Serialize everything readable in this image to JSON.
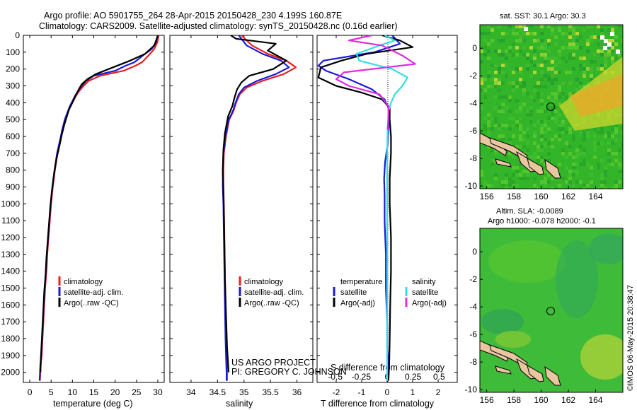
{
  "title_line1": "Argo profile: AO 5901755_264 28-Apr-2015 20150428_230 4.199S 160.87E",
  "title_line2": "Climatology: CARS2009. Satellite-adjusted climatology: synTS_20150428.nc (0.16d earlier)",
  "colors": {
    "climatology": "#e8201e",
    "satellite": "#1a1ad8",
    "argo": "#000000",
    "salinity_satellite": "#33dde6",
    "salinity_argo": "#e02be0",
    "land": "#e9c6a0"
  },
  "chart_data": [
    {
      "type": "line",
      "name": "temperature-profile",
      "xlabel": "temperature (deg C)",
      "ylabel": "",
      "xlim": [
        -1.5,
        31.5
      ],
      "ylim": [
        2060,
        0
      ],
      "xticks": [
        0,
        5,
        10,
        15,
        20,
        25,
        30
      ],
      "yticks": [
        0,
        100,
        200,
        300,
        400,
        500,
        600,
        700,
        800,
        900,
        1000,
        1100,
        1200,
        1300,
        1400,
        1500,
        1600,
        1700,
        1800,
        1900,
        2000
      ],
      "legend": [
        "climatology",
        "satellite-adj. clim.",
        "Argo(..raw -QC)"
      ],
      "series": [
        {
          "name": "climatology",
          "color": "#e8201e",
          "x": [
            30.2,
            29.9,
            29.2,
            27.8,
            26.3,
            24.8,
            22.0,
            16.5,
            13.8,
            12.6,
            11.6,
            10.8,
            10.2,
            9.5,
            8.9,
            8.3,
            7.7,
            7.2,
            6.5,
            5.9,
            5.4,
            5.0,
            4.7,
            4.4,
            4.1,
            3.9,
            3.6,
            3.4,
            3.2,
            3.0,
            2.8,
            2.6,
            2.5,
            2.4
          ],
          "y": [
            0,
            40,
            80,
            120,
            160,
            180,
            210,
            240,
            270,
            300,
            330,
            360,
            390,
            420,
            460,
            500,
            560,
            620,
            700,
            800,
            900,
            1000,
            1100,
            1200,
            1300,
            1400,
            1500,
            1600,
            1700,
            1800,
            1900,
            1950,
            2000,
            2050
          ]
        },
        {
          "name": "satellite",
          "color": "#1a1ad8",
          "x": [
            30.0,
            29.6,
            28.6,
            26.5,
            24.5,
            22.5,
            20.0,
            15.0,
            13.2,
            12.2,
            11.3,
            10.6,
            10.0,
            9.4,
            8.8,
            8.2,
            7.6,
            7.1,
            6.4,
            5.8,
            5.3,
            4.9,
            4.6,
            4.3,
            4.0,
            3.8,
            3.5,
            3.3,
            3.1,
            2.9,
            2.7,
            2.5,
            2.4,
            2.3
          ],
          "y": [
            0,
            40,
            80,
            120,
            160,
            180,
            210,
            240,
            270,
            300,
            330,
            360,
            390,
            420,
            460,
            500,
            560,
            620,
            700,
            800,
            900,
            1000,
            1100,
            1200,
            1300,
            1400,
            1500,
            1600,
            1700,
            1800,
            1900,
            1950,
            2000,
            2050
          ]
        },
        {
          "name": "argo",
          "color": "#000000",
          "x": [
            30.0,
            29.2,
            27.0,
            23.5,
            19.5,
            15.5,
            13.5,
            12.2,
            11.5,
            10.9,
            10.3,
            9.8,
            9.2,
            8.7,
            8.1,
            7.5,
            7.0,
            6.3,
            5.7,
            5.2,
            4.8,
            4.5,
            4.2,
            3.9,
            3.7,
            3.4,
            3.2,
            3.0,
            2.8,
            2.6,
            2.5
          ],
          "y": [
            0,
            60,
            110,
            150,
            190,
            230,
            260,
            290,
            320,
            350,
            380,
            410,
            440,
            480,
            530,
            590,
            650,
            730,
            820,
            920,
            1020,
            1120,
            1220,
            1320,
            1420,
            1520,
            1620,
            1720,
            1820,
            1920,
            2000
          ]
        }
      ]
    },
    {
      "type": "line",
      "name": "salinity-profile",
      "xlabel": "salinity",
      "xlim": [
        33.6,
        36.3
      ],
      "ylim": [
        2060,
        0
      ],
      "xticks": [
        34,
        34.5,
        35,
        35.5,
        36
      ],
      "legend": [
        "climatology",
        "satellite-adj. clim.",
        "Argo(..raw -QC)"
      ],
      "series": [
        {
          "name": "climatology",
          "color": "#e8201e",
          "x": [
            34.95,
            35.15,
            35.45,
            35.8,
            35.98,
            35.75,
            35.35,
            35.05,
            34.92,
            34.85,
            34.8,
            34.72,
            34.66,
            34.62,
            34.61,
            34.61,
            34.62,
            34.63,
            34.64,
            34.65,
            34.66,
            34.67,
            34.68,
            34.68
          ],
          "y": [
            0,
            60,
            110,
            150,
            190,
            230,
            270,
            310,
            350,
            400,
            450,
            500,
            600,
            700,
            800,
            900,
            1000,
            1200,
            1400,
            1600,
            1800,
            1900,
            2000,
            2050
          ]
        },
        {
          "name": "satellite",
          "color": "#1a1ad8",
          "x": [
            34.9,
            35.05,
            35.35,
            35.7,
            35.85,
            35.6,
            35.25,
            35.0,
            34.9,
            34.84,
            34.79,
            34.71,
            34.65,
            34.61,
            34.6,
            34.6,
            34.61,
            34.62,
            34.63,
            34.64,
            34.65,
            34.66,
            34.67,
            34.67
          ],
          "y": [
            0,
            60,
            110,
            150,
            190,
            230,
            270,
            310,
            350,
            400,
            450,
            500,
            600,
            700,
            800,
            900,
            1000,
            1200,
            1400,
            1600,
            1800,
            1900,
            2000,
            2050
          ]
        },
        {
          "name": "argo",
          "color": "#000000",
          "x": [
            34.75,
            34.85,
            35.6,
            35.45,
            35.8,
            35.55,
            35.1,
            34.95,
            34.87,
            34.82,
            34.78,
            34.7,
            34.64,
            34.61,
            34.6,
            34.61,
            34.62,
            34.63,
            34.64,
            34.66,
            34.68,
            34.7,
            34.71
          ],
          "y": [
            0,
            20,
            50,
            90,
            150,
            200,
            240,
            280,
            320,
            370,
            420,
            480,
            580,
            680,
            800,
            920,
            1050,
            1250,
            1450,
            1650,
            1850,
            1950,
            2000
          ]
        }
      ]
    },
    {
      "type": "line",
      "name": "difference-profile",
      "xlabel": "T difference from climatology",
      "xlabel_top": "S difference from climatology",
      "xlim": [
        -2.75,
        2.75
      ],
      "ylim": [
        2060,
        0
      ],
      "xticks": [
        -2,
        -1,
        0,
        1,
        2
      ],
      "xticks_salinity": [
        -0.5,
        -0.25,
        0,
        0.25,
        0.5
      ],
      "legend": [
        "temperature",
        "satellite",
        "Argo(-adj)",
        "salinity",
        "satellite",
        "Argo(-adj)"
      ],
      "series": [
        {
          "name": "temperature-satellite",
          "color": "#1a1ad8",
          "x": [
            0.2,
            0.5,
            -0.5,
            -2.5,
            -2.7,
            -2.4,
            -1.5,
            -0.6,
            -0.1,
            0.05,
            0.08,
            0.05,
            0.02,
            -0.08,
            -0.12,
            -0.1,
            -0.1,
            -0.05,
            -0.05,
            0.0,
            0.0,
            0.05,
            0.0
          ],
          "y": [
            0,
            50,
            100,
            150,
            180,
            210,
            260,
            320,
            380,
            430,
            480,
            550,
            650,
            750,
            850,
            950,
            1100,
            1300,
            1500,
            1700,
            1850,
            1950,
            2050
          ]
        },
        {
          "name": "temperature-argo",
          "color": "#000000",
          "x": [
            -0.2,
            0.5,
            1.0,
            -0.8,
            -1.8,
            -2.6,
            -2.7,
            -2.0,
            -1.0,
            -0.2,
            0.1,
            0.1,
            0.15,
            0.15,
            0.1,
            0.1,
            0.15,
            0.15,
            0.12,
            0.1,
            0.08,
            0.05
          ],
          "y": [
            0,
            30,
            70,
            110,
            150,
            190,
            250,
            300,
            340,
            380,
            430,
            500,
            600,
            700,
            850,
            1000,
            1200,
            1400,
            1600,
            1800,
            1950,
            2050
          ]
        },
        {
          "name": "salinity-satellite",
          "color": "#33dde6",
          "x": [
            -0.1,
            0.3,
            -0.3,
            -1.2,
            -1.1,
            0.2,
            0.8,
            0.6,
            0.3,
            0.15,
            0.05,
            0.02,
            0.0,
            0.0,
            0.0,
            0.0,
            0.0,
            0.0,
            0.0,
            0.0
          ],
          "y": [
            0,
            30,
            60,
            110,
            150,
            200,
            250,
            300,
            350,
            400,
            450,
            550,
            700,
            900,
            1100,
            1300,
            1500,
            1700,
            1900,
            2050
          ]
        },
        {
          "name": "salinity-argo",
          "color": "#e02be0",
          "x": [
            -0.6,
            -1.5,
            -0.2,
            0.6,
            1.1,
            -1.7,
            -2.0,
            -1.5,
            -0.3,
            0.05,
            0.05,
            0.02
          ],
          "y": [
            0,
            30,
            60,
            120,
            170,
            220,
            260,
            300,
            350,
            420,
            500,
            560
          ]
        }
      ]
    },
    {
      "type": "heatmap",
      "name": "sst-map",
      "title": "sat. SST: 30.1  Argo: 30.3",
      "xticks": [
        156,
        158,
        160,
        162,
        164
      ],
      "yticks": [
        0,
        -2,
        -4,
        -6,
        -8,
        -10
      ],
      "xlim": [
        155.5,
        166
      ],
      "ylim": [
        -10.2,
        1.7
      ],
      "argo_position": [
        160.87,
        -4.199
      ]
    },
    {
      "type": "heatmap",
      "name": "sla-map",
      "title": "Altim. SLA: -0.0089",
      "subtitle": "Argo h1000: -0.078 h2000: -0.1",
      "xticks": [
        156,
        158,
        160,
        162,
        164
      ],
      "yticks": [
        0,
        -2,
        -4,
        -6,
        -8,
        -10
      ],
      "xlim": [
        155.5,
        166
      ],
      "ylim": [
        -10.2,
        1.7
      ],
      "argo_position": [
        160.87,
        -4.199
      ]
    }
  ],
  "credits": {
    "project": "US ARGO PROJECT",
    "pi": "PI: GREGORY C. JOHNSON"
  },
  "watermark": "©IMOS 06-May-2015 20:38:47"
}
